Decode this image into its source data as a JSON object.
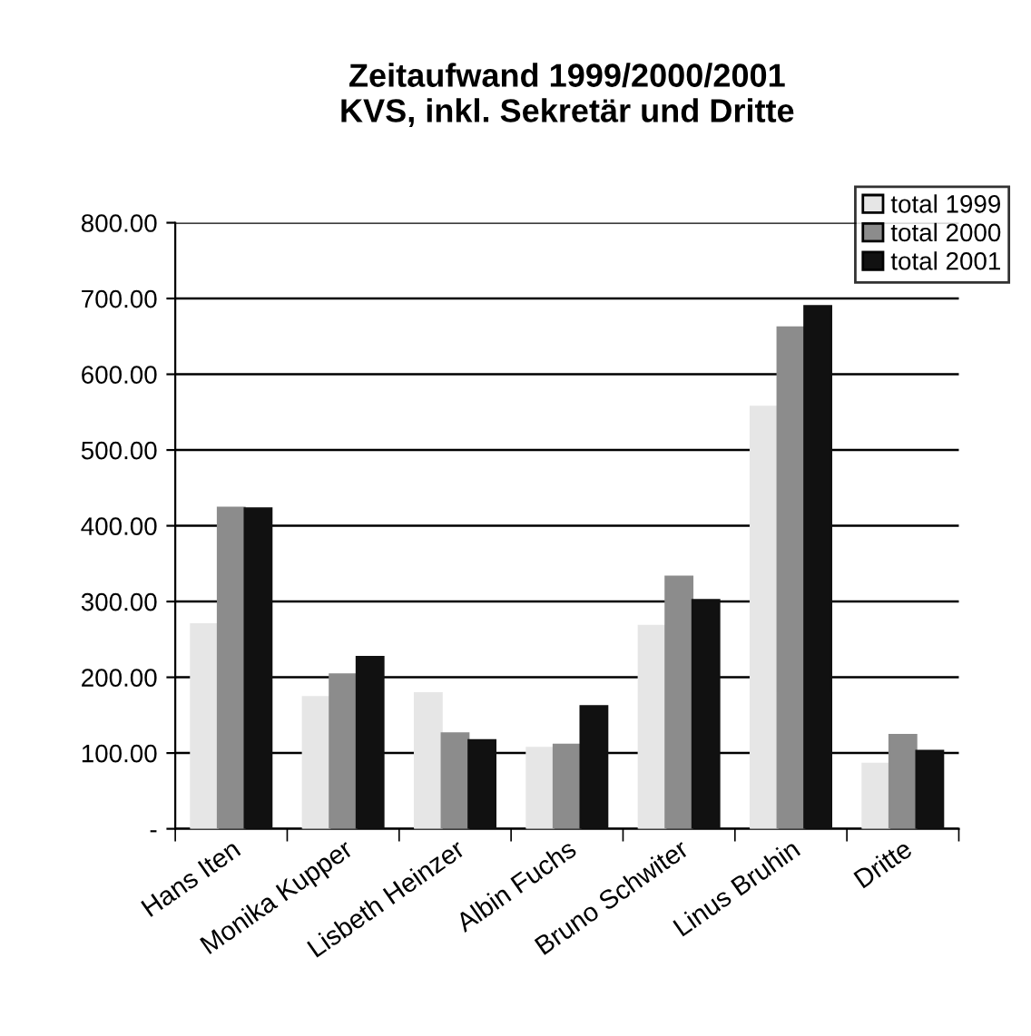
{
  "chart_data": {
    "type": "bar",
    "title": "Zeitaufwand 1999/2000/2001\nKVS, inkl. Sekretär und Dritte",
    "categories": [
      "Hans Iten",
      "Monika Kupper",
      "Lisbeth Heinzer",
      "Albin Fuchs",
      "Bruno Schwiter",
      "Linus Bruhin",
      "Dritte"
    ],
    "series": [
      {
        "name": "total 1999",
        "color": "#e6e6e6",
        "values": [
          270,
          174,
          179,
          107,
          268,
          557,
          86
        ]
      },
      {
        "name": "total 2000",
        "color": "#8c8c8c",
        "values": [
          424,
          204,
          126,
          111,
          333,
          662,
          124
        ]
      },
      {
        "name": "total 2001",
        "color": "#111111",
        "values": [
          423,
          227,
          117,
          162,
          302,
          690,
          103
        ]
      }
    ],
    "ylim": [
      0,
      800
    ],
    "yticks": [
      {
        "value": 0,
        "label": "-"
      },
      {
        "value": 100,
        "label": "100.00"
      },
      {
        "value": 200,
        "label": "200.00"
      },
      {
        "value": 300,
        "label": "300.00"
      },
      {
        "value": 400,
        "label": "400.00"
      },
      {
        "value": 500,
        "label": "500.00"
      },
      {
        "value": 600,
        "label": "600.00"
      },
      {
        "value": 700,
        "label": "700.00"
      },
      {
        "value": 800,
        "label": "800.00"
      }
    ],
    "grid": "y",
    "legend": "top right"
  }
}
